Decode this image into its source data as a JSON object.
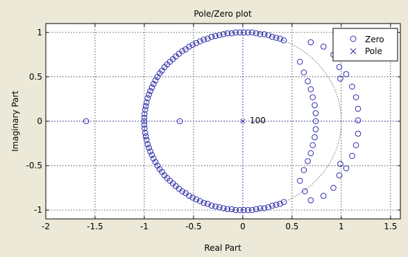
{
  "chart_data": {
    "type": "scatter",
    "title": "Pole/Zero plot",
    "xlabel": "Real Part",
    "ylabel": "Imaginary Part",
    "xlim": [
      -2,
      1.6
    ],
    "ylim": [
      -1.1,
      1.1
    ],
    "xticks": [
      "-2",
      "-1.5",
      "-1",
      "-0.5",
      "0",
      "0.5",
      "1",
      "1.5"
    ],
    "yticks": [
      "-1",
      "-0.5",
      "0",
      "0.5",
      "1"
    ],
    "xtick_values": [
      -2,
      -1.5,
      -1,
      -0.5,
      0,
      0.5,
      1,
      1.5
    ],
    "ytick_values": [
      -1,
      -0.5,
      0,
      0.5,
      1
    ],
    "grid": true,
    "unit_circle": true,
    "legend_position": "top-right",
    "legend": [
      "Zero",
      "Pole"
    ],
    "series": [
      {
        "name": "Zero",
        "marker": "circle",
        "color": "#2b2bb0",
        "points": [
          [
            -1.59,
            0
          ],
          [
            -0.64,
            0
          ],
          [
            -1.0,
            0.0
          ],
          [
            -1.0,
            0.04
          ],
          [
            -0.997,
            0.08
          ],
          [
            -0.991,
            0.13
          ],
          [
            -0.985,
            0.17
          ],
          [
            -0.977,
            0.21
          ],
          [
            -0.966,
            0.26
          ],
          [
            -0.953,
            0.3
          ],
          [
            -0.939,
            0.34
          ],
          [
            -0.923,
            0.38
          ],
          [
            -0.906,
            0.42
          ],
          [
            -0.887,
            0.46
          ],
          [
            -0.866,
            0.5
          ],
          [
            -0.844,
            0.54
          ],
          [
            -0.82,
            0.57
          ],
          [
            -0.795,
            0.61
          ],
          [
            -0.768,
            0.64
          ],
          [
            -0.74,
            0.67
          ],
          [
            -0.71,
            0.7
          ],
          [
            -0.68,
            0.73
          ],
          [
            -0.648,
            0.76
          ],
          [
            -0.614,
            0.79
          ],
          [
            -0.58,
            0.81
          ],
          [
            -0.545,
            0.84
          ],
          [
            -0.509,
            0.86
          ],
          [
            -0.472,
            0.88
          ],
          [
            -0.434,
            0.9
          ],
          [
            -0.396,
            0.92
          ],
          [
            -0.357,
            0.93
          ],
          [
            -0.317,
            0.95
          ],
          [
            -0.277,
            0.96
          ],
          [
            -0.237,
            0.97
          ],
          [
            -0.196,
            0.98
          ],
          [
            -0.155,
            0.99
          ],
          [
            -0.113,
            0.99
          ],
          [
            -0.072,
            1.0
          ],
          [
            -0.03,
            1.0
          ],
          [
            0.011,
            1.0
          ],
          [
            0.053,
            1.0
          ],
          [
            0.094,
            1.0
          ],
          [
            0.136,
            0.99
          ],
          [
            0.177,
            0.98
          ],
          [
            0.218,
            0.98
          ],
          [
            0.259,
            0.97
          ],
          [
            0.299,
            0.95
          ],
          [
            0.339,
            0.94
          ],
          [
            0.378,
            0.93
          ],
          [
            0.417,
            0.91
          ],
          [
            -1.0,
            -0.04
          ],
          [
            -0.997,
            -0.08
          ],
          [
            -0.991,
            -0.13
          ],
          [
            -0.985,
            -0.17
          ],
          [
            -0.977,
            -0.21
          ],
          [
            -0.966,
            -0.26
          ],
          [
            -0.953,
            -0.3
          ],
          [
            -0.939,
            -0.34
          ],
          [
            -0.923,
            -0.38
          ],
          [
            -0.906,
            -0.42
          ],
          [
            -0.887,
            -0.46
          ],
          [
            -0.866,
            -0.5
          ],
          [
            -0.844,
            -0.54
          ],
          [
            -0.82,
            -0.57
          ],
          [
            -0.795,
            -0.61
          ],
          [
            -0.768,
            -0.64
          ],
          [
            -0.74,
            -0.67
          ],
          [
            -0.71,
            -0.7
          ],
          [
            -0.68,
            -0.73
          ],
          [
            -0.648,
            -0.76
          ],
          [
            -0.614,
            -0.79
          ],
          [
            -0.58,
            -0.81
          ],
          [
            -0.545,
            -0.84
          ],
          [
            -0.509,
            -0.86
          ],
          [
            -0.472,
            -0.88
          ],
          [
            -0.434,
            -0.9
          ],
          [
            -0.396,
            -0.92
          ],
          [
            -0.357,
            -0.93
          ],
          [
            -0.317,
            -0.95
          ],
          [
            -0.277,
            -0.96
          ],
          [
            -0.237,
            -0.97
          ],
          [
            -0.196,
            -0.98
          ],
          [
            -0.155,
            -0.99
          ],
          [
            -0.113,
            -0.99
          ],
          [
            -0.072,
            -1.0
          ],
          [
            -0.03,
            -1.0
          ],
          [
            0.011,
            -1.0
          ],
          [
            0.053,
            -1.0
          ],
          [
            0.094,
            -1.0
          ],
          [
            0.136,
            -0.99
          ],
          [
            0.177,
            -0.98
          ],
          [
            0.218,
            -0.98
          ],
          [
            0.259,
            -0.97
          ],
          [
            0.299,
            -0.95
          ],
          [
            0.339,
            -0.94
          ],
          [
            0.378,
            -0.93
          ],
          [
            0.417,
            -0.91
          ],
          [
            0.58,
            0.67
          ],
          [
            0.62,
            0.55
          ],
          [
            0.66,
            0.45
          ],
          [
            0.69,
            0.36
          ],
          [
            0.71,
            0.27
          ],
          [
            0.73,
            0.18
          ],
          [
            0.74,
            0.09
          ],
          [
            0.74,
            0.0
          ],
          [
            0.74,
            -0.09
          ],
          [
            0.73,
            -0.18
          ],
          [
            0.71,
            -0.27
          ],
          [
            0.69,
            -0.36
          ],
          [
            0.66,
            -0.45
          ],
          [
            0.62,
            -0.55
          ],
          [
            0.58,
            -0.67
          ],
          [
            0.69,
            0.89
          ],
          [
            0.82,
            0.84
          ],
          [
            0.92,
            0.75
          ],
          [
            0.98,
            0.61
          ],
          [
            0.99,
            0.48
          ],
          [
            0.63,
            -0.79
          ],
          [
            0.69,
            -0.89
          ],
          [
            0.82,
            -0.84
          ],
          [
            0.92,
            -0.75
          ],
          [
            0.98,
            -0.61
          ],
          [
            0.99,
            -0.48
          ],
          [
            1.05,
            0.53
          ],
          [
            1.11,
            0.39
          ],
          [
            1.15,
            0.27
          ],
          [
            1.17,
            0.14
          ],
          [
            1.17,
            0.01
          ],
          [
            1.17,
            -0.14
          ],
          [
            1.15,
            -0.27
          ],
          [
            1.11,
            -0.39
          ],
          [
            1.05,
            -0.53
          ]
        ]
      },
      {
        "name": "Pole",
        "marker": "x",
        "color": "#2b2bb0",
        "points": [
          [
            0,
            0
          ]
        ]
      }
    ],
    "annotations": [
      {
        "text": "100",
        "x": 0.05,
        "y": 0.04
      }
    ]
  }
}
